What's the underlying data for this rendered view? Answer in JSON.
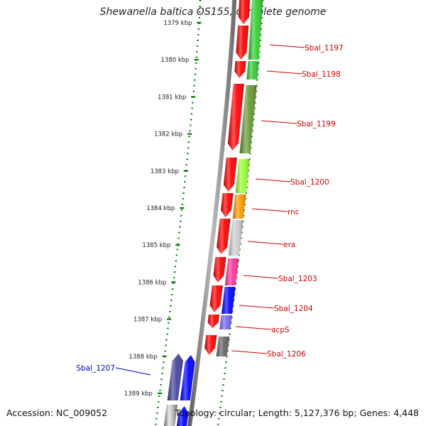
{
  "title": "Shewanella baltica OS155, complete genome",
  "accession_text": "Accession: NC_009052",
  "summary_text": "Topology: circular; Length: 5,127,376 bp; Genes: 4,448",
  "colors": {
    "forward_strand": "#ff0000",
    "reverse_strand": "#0000ff",
    "label_forward": "#cc0000",
    "label_reverse": "#0000cc",
    "scale_ticks": "#007700"
  },
  "scale": {
    "labels": [
      "1379 kbp",
      "1380 kbp",
      "1381 kbp",
      "1382 kbp",
      "1383 kbp",
      "1384 kbp",
      "1385 kbp",
      "1386 kbp",
      "1387 kbp",
      "1388 kbp",
      "1389 kbp"
    ]
  },
  "genes": [
    {
      "label": "Sbal_1197",
      "strand": "forward",
      "color": "#33cc33"
    },
    {
      "label": "Sbal_1198",
      "strand": "forward",
      "color": "#33cc33"
    },
    {
      "label": "Sbal_1199",
      "strand": "forward",
      "color": "#669933"
    },
    {
      "label": "Sbal_1200",
      "strand": "forward",
      "color": "#99ff33"
    },
    {
      "label": "rnc",
      "strand": "forward",
      "color": "#ff9900"
    },
    {
      "label": "era",
      "strand": "forward",
      "color": "#cccccc"
    },
    {
      "label": "Sbal_1203",
      "strand": "forward",
      "color": "#ff3399"
    },
    {
      "label": "Sbal_1204",
      "strand": "forward",
      "color": "#0000ff"
    },
    {
      "label": "acpS",
      "strand": "forward",
      "color": "#7766ee"
    },
    {
      "label": "Sbal_1206",
      "strand": "forward",
      "color": "#666666"
    },
    {
      "label": "Sbal_1207",
      "strand": "reverse",
      "color": "#444499"
    }
  ]
}
